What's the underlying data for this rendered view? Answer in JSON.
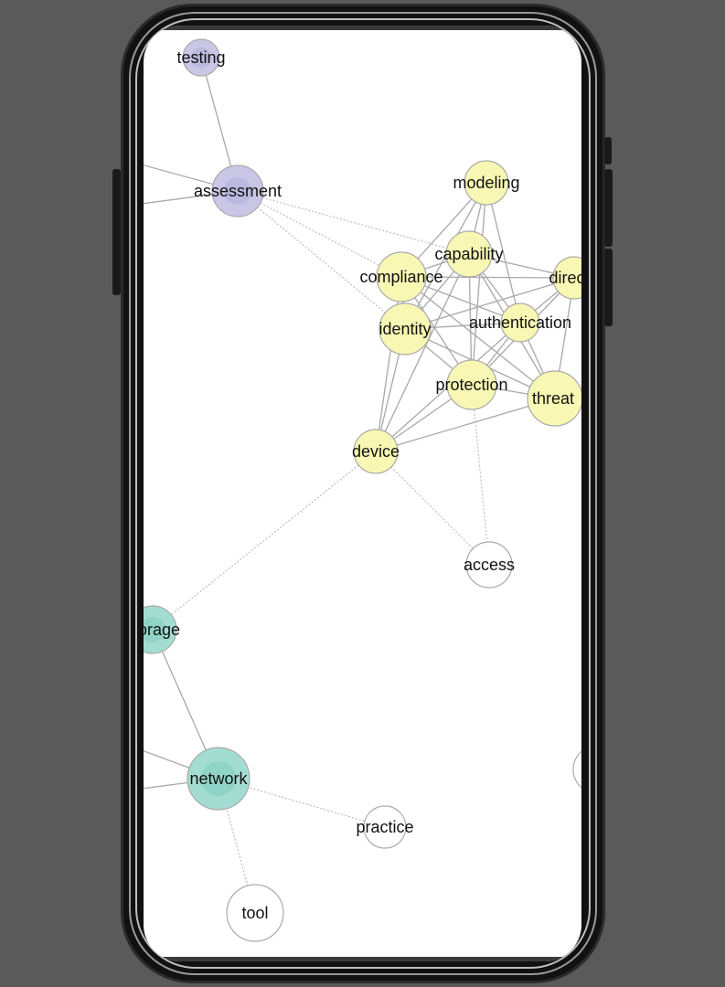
{
  "graph": {
    "nodes": [
      {
        "id": "testing",
        "label": "testing",
        "group": "purple"
      },
      {
        "id": "assessment",
        "label": "assessment",
        "group": "purple"
      },
      {
        "id": "modeling",
        "label": "modeling",
        "group": "yellow"
      },
      {
        "id": "capability",
        "label": "capability",
        "group": "yellow"
      },
      {
        "id": "compliance",
        "label": "compliance",
        "group": "yellow"
      },
      {
        "id": "direc",
        "label": "direc",
        "group": "yellow"
      },
      {
        "id": "identity",
        "label": "identity",
        "group": "yellow"
      },
      {
        "id": "authentication",
        "label": "authentication",
        "group": "yellow"
      },
      {
        "id": "protection",
        "label": "protection",
        "group": "yellow"
      },
      {
        "id": "threat",
        "label": "threat",
        "group": "yellow"
      },
      {
        "id": "device",
        "label": "device",
        "group": "yellow"
      },
      {
        "id": "access",
        "label": "access",
        "group": "none"
      },
      {
        "id": "storage",
        "label": "orage",
        "group": "teal"
      },
      {
        "id": "network",
        "label": "network",
        "group": "teal"
      },
      {
        "id": "practice",
        "label": "practice",
        "group": "none"
      },
      {
        "id": "tool",
        "label": "tool",
        "group": "none"
      },
      {
        "id": "offscreen",
        "label": "",
        "group": "none"
      }
    ],
    "edges": [
      {
        "s": "testing",
        "t": "assessment",
        "style": "solid"
      },
      {
        "s": "assessment",
        "t": "offL1",
        "style": "solid"
      },
      {
        "s": "assessment",
        "t": "offL2",
        "style": "solid"
      },
      {
        "s": "assessment",
        "t": "capability",
        "style": "dotted"
      },
      {
        "s": "assessment",
        "t": "compliance",
        "style": "dotted"
      },
      {
        "s": "assessment",
        "t": "identity",
        "style": "dotted"
      },
      {
        "s": "modeling",
        "t": "capability",
        "style": "solid"
      },
      {
        "s": "modeling",
        "t": "compliance",
        "style": "solid"
      },
      {
        "s": "modeling",
        "t": "identity",
        "style": "solid"
      },
      {
        "s": "modeling",
        "t": "authentication",
        "style": "solid"
      },
      {
        "s": "modeling",
        "t": "protection",
        "style": "solid"
      },
      {
        "s": "capability",
        "t": "compliance",
        "style": "solid"
      },
      {
        "s": "capability",
        "t": "direc",
        "style": "solid"
      },
      {
        "s": "capability",
        "t": "identity",
        "style": "solid"
      },
      {
        "s": "capability",
        "t": "authentication",
        "style": "solid"
      },
      {
        "s": "capability",
        "t": "protection",
        "style": "solid"
      },
      {
        "s": "capability",
        "t": "threat",
        "style": "solid"
      },
      {
        "s": "capability",
        "t": "device",
        "style": "solid"
      },
      {
        "s": "compliance",
        "t": "direc",
        "style": "solid"
      },
      {
        "s": "compliance",
        "t": "identity",
        "style": "solid"
      },
      {
        "s": "compliance",
        "t": "authentication",
        "style": "solid"
      },
      {
        "s": "compliance",
        "t": "protection",
        "style": "solid"
      },
      {
        "s": "compliance",
        "t": "threat",
        "style": "solid"
      },
      {
        "s": "compliance",
        "t": "device",
        "style": "solid"
      },
      {
        "s": "direc",
        "t": "identity",
        "style": "solid"
      },
      {
        "s": "direc",
        "t": "authentication",
        "style": "solid"
      },
      {
        "s": "direc",
        "t": "protection",
        "style": "solid"
      },
      {
        "s": "direc",
        "t": "threat",
        "style": "solid"
      },
      {
        "s": "identity",
        "t": "authentication",
        "style": "solid"
      },
      {
        "s": "identity",
        "t": "protection",
        "style": "solid"
      },
      {
        "s": "identity",
        "t": "threat",
        "style": "solid"
      },
      {
        "s": "identity",
        "t": "device",
        "style": "solid"
      },
      {
        "s": "authentication",
        "t": "protection",
        "style": "solid"
      },
      {
        "s": "authentication",
        "t": "threat",
        "style": "solid"
      },
      {
        "s": "authentication",
        "t": "device",
        "style": "solid"
      },
      {
        "s": "protection",
        "t": "threat",
        "style": "solid"
      },
      {
        "s": "protection",
        "t": "device",
        "style": "solid"
      },
      {
        "s": "threat",
        "t": "device",
        "style": "solid"
      },
      {
        "s": "device",
        "t": "access",
        "style": "dotted"
      },
      {
        "s": "protection",
        "t": "access",
        "style": "dotted"
      },
      {
        "s": "device",
        "t": "storage",
        "style": "dotted"
      },
      {
        "s": "storage",
        "t": "network",
        "style": "solid"
      },
      {
        "s": "network",
        "t": "offL3",
        "style": "solid"
      },
      {
        "s": "network",
        "t": "offL4",
        "style": "solid"
      },
      {
        "s": "network",
        "t": "practice",
        "style": "dotted"
      },
      {
        "s": "network",
        "t": "tool",
        "style": "dotted"
      }
    ],
    "colors": {
      "purple": "#c9c6e6",
      "purple_inner": "#bcb8e0",
      "yellow": "#f8f8b4",
      "teal": "#a3ddd1",
      "teal_inner": "#8fd4c6",
      "none": "#ffffff",
      "stroke": "#aaaaaa",
      "edge": "#a8a8a8"
    }
  }
}
